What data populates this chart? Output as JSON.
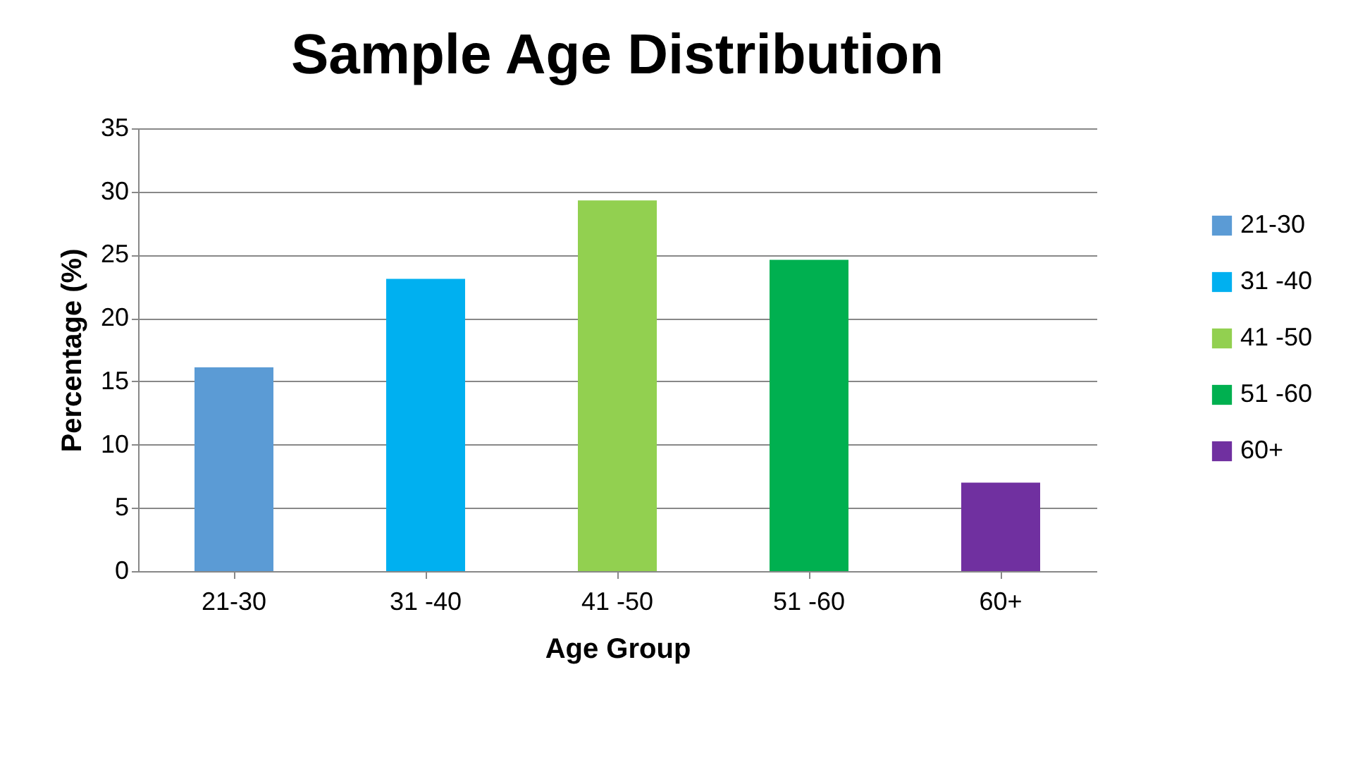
{
  "chart_data": {
    "type": "bar",
    "title": "Sample Age Distribution",
    "xlabel": "Age Group",
    "ylabel": "Percentage (%)",
    "categories": [
      "21-30",
      "31 -40",
      "41 -50",
      "51 -60",
      "60+"
    ],
    "series": [
      {
        "name": "21-30",
        "color": "#5b9bd5",
        "values": [
          16.1,
          null,
          null,
          null,
          null
        ]
      },
      {
        "name": "31 -40",
        "color": "#00b0f0",
        "values": [
          null,
          23.1,
          null,
          null,
          null
        ]
      },
      {
        "name": "41 -50",
        "color": "#92d050",
        "values": [
          null,
          null,
          29.3,
          null,
          null
        ]
      },
      {
        "name": "51 -60",
        "color": "#00b050",
        "values": [
          null,
          null,
          null,
          24.6,
          null
        ]
      },
      {
        "name": "60+",
        "color": "#7030a0",
        "values": [
          null,
          null,
          null,
          null,
          7.0
        ]
      }
    ],
    "ylim": [
      0,
      35
    ],
    "yticks": [
      0,
      5,
      10,
      15,
      20,
      25,
      30,
      35
    ],
    "grid": "y",
    "legend": "right"
  }
}
